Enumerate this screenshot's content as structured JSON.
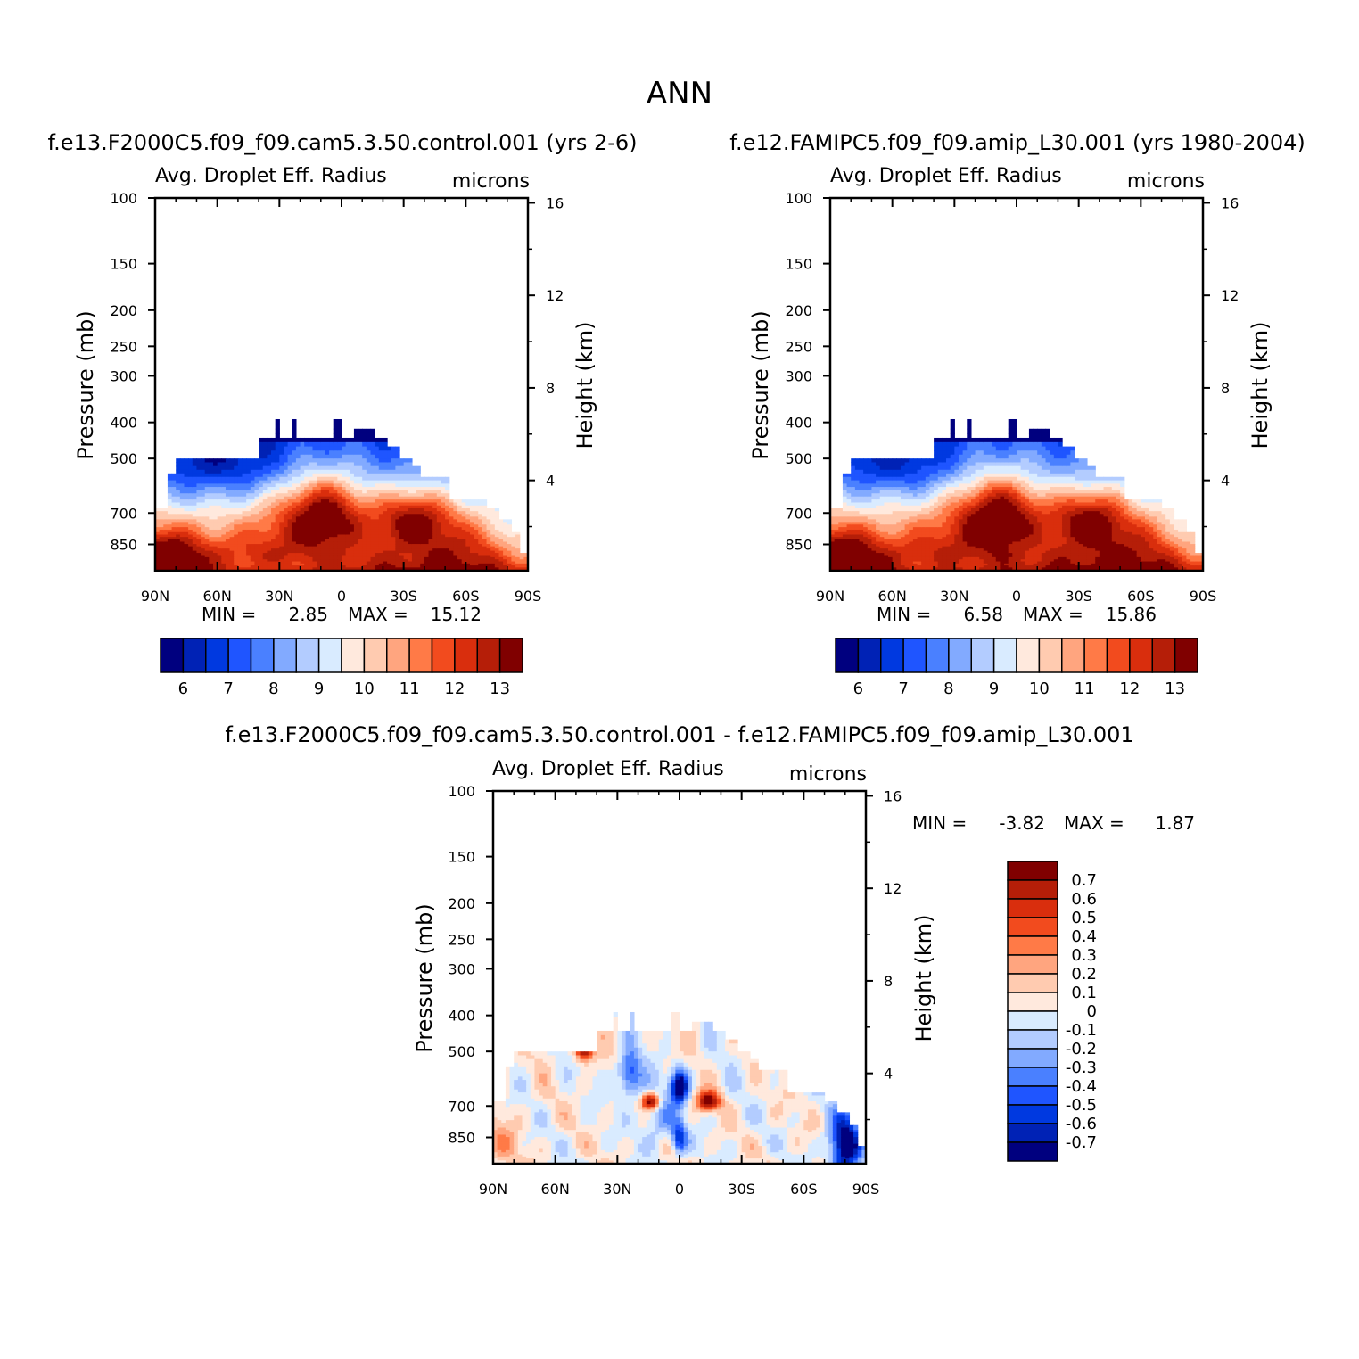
{
  "figure_title": "ANN",
  "colors": {
    "abs_palette": [
      "#00007f",
      "#0022b5",
      "#0039e0",
      "#1f55ff",
      "#4a80ff",
      "#82aaff",
      "#b3ccff",
      "#d9ebff",
      "#ffe9dd",
      "#ffcbb0",
      "#ffa57f",
      "#ff7a47",
      "#f24b1e",
      "#d92e0d",
      "#b51e08",
      "#800000"
    ],
    "diff_palette": [
      "#00007f",
      "#0022b5",
      "#0039e0",
      "#1f55ff",
      "#4a80ff",
      "#82aaff",
      "#b3ccff",
      "#d9ebff",
      "#ffe9dd",
      "#ffcbb0",
      "#ffa57f",
      "#ff7a47",
      "#f24b1e",
      "#d92e0d",
      "#b51e08",
      "#800000"
    ]
  },
  "chart_data": [
    {
      "id": "control",
      "type": "heatmap",
      "case_title": "f.e13.F2000C5.f09_f09.cam5.3.50.control.001 (yrs 2-6)",
      "title": "Avg. Droplet Eff. Radius",
      "units": "microns",
      "ylabel": "Pressure (mb)",
      "ylabel_right": "Height (km)",
      "xlim": [
        90,
        -90
      ],
      "x_ticks": [
        "90N",
        "60N",
        "30N",
        "0",
        "30S",
        "60S",
        "90S"
      ],
      "y_ticks": [
        "100",
        "150",
        "200",
        "250",
        "300",
        "400",
        "500",
        "700",
        "850"
      ],
      "y_ticks_right": [
        "16",
        "12",
        "8",
        "4"
      ],
      "ylim_mb": [
        100,
        1000
      ],
      "min_label": "MIN =",
      "min_value": "2.85",
      "max_label": "MAX =",
      "max_value": "15.12",
      "colorbar_labels": [
        "6",
        "7",
        "8",
        "9",
        "10",
        "11",
        "12",
        "13"
      ],
      "levels": [
        5.5,
        6,
        6.5,
        7,
        7.5,
        8,
        8.5,
        9,
        9.5,
        10,
        10.5,
        11,
        11.5,
        12,
        12.5,
        13,
        13.5
      ],
      "field": "abs",
      "offset": 0,
      "scale": 1
    },
    {
      "id": "amip",
      "type": "heatmap",
      "case_title": "f.e12.FAMIPC5.f09_f09.amip_L30.001 (yrs 1980-2004)",
      "title": "Avg. Droplet Eff. Radius",
      "units": "microns",
      "ylabel": "Pressure (mb)",
      "ylabel_right": "Height (km)",
      "xlim": [
        90,
        -90
      ],
      "x_ticks": [
        "90N",
        "60N",
        "30N",
        "0",
        "30S",
        "60S",
        "90S"
      ],
      "y_ticks": [
        "100",
        "150",
        "200",
        "250",
        "300",
        "400",
        "500",
        "700",
        "850"
      ],
      "y_ticks_right": [
        "16",
        "12",
        "8",
        "4"
      ],
      "ylim_mb": [
        100,
        1000
      ],
      "min_label": "MIN =",
      "min_value": "6.58",
      "max_label": "MAX =",
      "max_value": "15.86",
      "colorbar_labels": [
        "6",
        "7",
        "8",
        "9",
        "10",
        "11",
        "12",
        "13"
      ],
      "levels": [
        5.5,
        6,
        6.5,
        7,
        7.5,
        8,
        8.5,
        9,
        9.5,
        10,
        10.5,
        11,
        11.5,
        12,
        12.5,
        13,
        13.5
      ],
      "field": "abs",
      "offset": 0.2,
      "scale": 1
    },
    {
      "id": "diff",
      "type": "heatmap",
      "case_title": "f.e13.F2000C5.f09_f09.cam5.3.50.control.001 - f.e12.FAMIPC5.f09_f09.amip_L30.001",
      "title": "Avg. Droplet Eff. Radius",
      "units": "microns",
      "ylabel": "Pressure (mb)",
      "ylabel_right": "Height (km)",
      "xlim": [
        90,
        -90
      ],
      "x_ticks": [
        "90N",
        "60N",
        "30N",
        "0",
        "30S",
        "60S",
        "90S"
      ],
      "y_ticks": [
        "100",
        "150",
        "200",
        "250",
        "300",
        "400",
        "500",
        "700",
        "850"
      ],
      "y_ticks_right": [
        "16",
        "12",
        "8",
        "4"
      ],
      "ylim_mb": [
        100,
        1000
      ],
      "min_label": "MIN =",
      "min_value": "-3.82",
      "max_label": "MAX =",
      "max_value": "1.87",
      "colorbar_labels": [
        "-0.7",
        "-0.6",
        "-0.5",
        "-0.4",
        "-0.3",
        "-0.2",
        "-0.1",
        "0",
        "0.1",
        "0.2",
        "0.3",
        "0.4",
        "0.5",
        "0.6",
        "0.7"
      ],
      "levels": [
        -0.8,
        -0.7,
        -0.6,
        -0.5,
        -0.4,
        -0.3,
        -0.2,
        -0.1,
        0,
        0.1,
        0.2,
        0.3,
        0.4,
        0.5,
        0.6,
        0.7,
        0.8
      ],
      "field": "diff",
      "offset": 0,
      "scale": 1
    }
  ]
}
